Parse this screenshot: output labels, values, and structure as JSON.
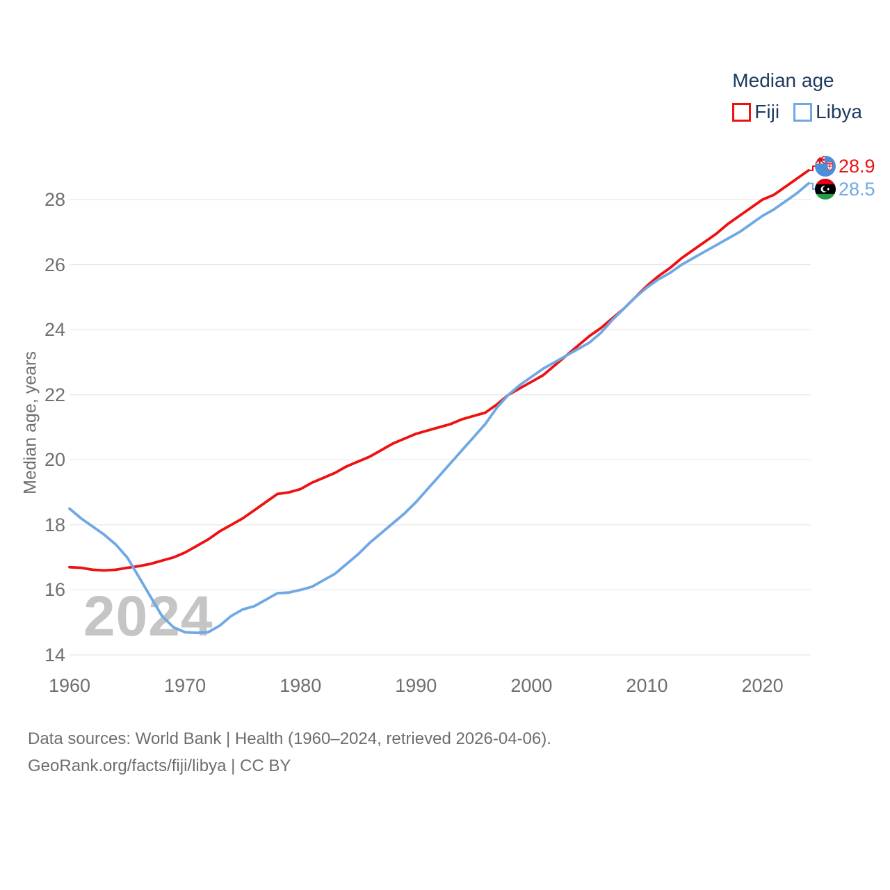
{
  "legend": {
    "title": "Median age",
    "items": [
      {
        "label": "Fiji",
        "color": "#ee1111"
      },
      {
        "label": "Libya",
        "color": "#6fa8e4"
      }
    ]
  },
  "chart_data": {
    "type": "line",
    "title": "Median age",
    "ylabel": "Median age, years",
    "xlabel": "",
    "grid": true,
    "legend_position": "top-right",
    "x_range": [
      1960,
      2024
    ],
    "y_range": [
      14,
      28
    ],
    "x_ticks": [
      1960,
      1970,
      1980,
      1990,
      2000,
      2010,
      2020
    ],
    "y_ticks": [
      14,
      16,
      18,
      20,
      22,
      24,
      26,
      28
    ],
    "x_step": 1,
    "series": [
      {
        "name": "Fiji",
        "color": "#ee1111",
        "end_label": "28.9",
        "flag_icon": "fiji-flag-icon",
        "values": [
          16.7,
          16.68,
          16.62,
          16.6,
          16.62,
          16.68,
          16.73,
          16.8,
          16.9,
          17.0,
          17.15,
          17.35,
          17.55,
          17.8,
          18.0,
          18.2,
          18.45,
          18.7,
          18.95,
          19.0,
          19.1,
          19.3,
          19.45,
          19.6,
          19.8,
          19.95,
          20.1,
          20.3,
          20.5,
          20.65,
          20.8,
          20.9,
          21.0,
          21.1,
          21.25,
          21.35,
          21.45,
          21.7,
          22.0,
          22.2,
          22.4,
          22.6,
          22.9,
          23.2,
          23.5,
          23.8,
          24.05,
          24.35,
          24.65,
          25.0,
          25.35,
          25.65,
          25.9,
          26.2,
          26.45,
          26.7,
          26.95,
          27.25,
          27.5,
          27.75,
          28.0,
          28.15,
          28.4,
          28.65,
          28.9
        ]
      },
      {
        "name": "Libya",
        "color": "#6fa8e4",
        "end_label": "28.5",
        "flag_icon": "libya-flag-icon",
        "values": [
          18.5,
          18.2,
          17.95,
          17.7,
          17.4,
          17.0,
          16.4,
          15.8,
          15.2,
          14.85,
          14.7,
          14.68,
          14.7,
          14.9,
          15.2,
          15.4,
          15.5,
          15.7,
          15.9,
          15.92,
          16.0,
          16.1,
          16.3,
          16.5,
          16.8,
          17.1,
          17.45,
          17.75,
          18.05,
          18.35,
          18.7,
          19.1,
          19.5,
          19.9,
          20.3,
          20.7,
          21.1,
          21.6,
          22.0,
          22.3,
          22.55,
          22.8,
          23.0,
          23.2,
          23.4,
          23.6,
          23.9,
          24.3,
          24.65,
          25.0,
          25.3,
          25.55,
          25.75,
          26.0,
          26.2,
          26.4,
          26.6,
          26.8,
          27.0,
          27.25,
          27.5,
          27.7,
          27.95,
          28.2,
          28.5
        ]
      }
    ]
  },
  "watermark": "2024",
  "footer": {
    "line1": "Data sources: World Bank | Health (1960–2024, retrieved 2026-04-06).",
    "line2": "GeoRank.org/facts/fiji/libya | CC BY"
  }
}
